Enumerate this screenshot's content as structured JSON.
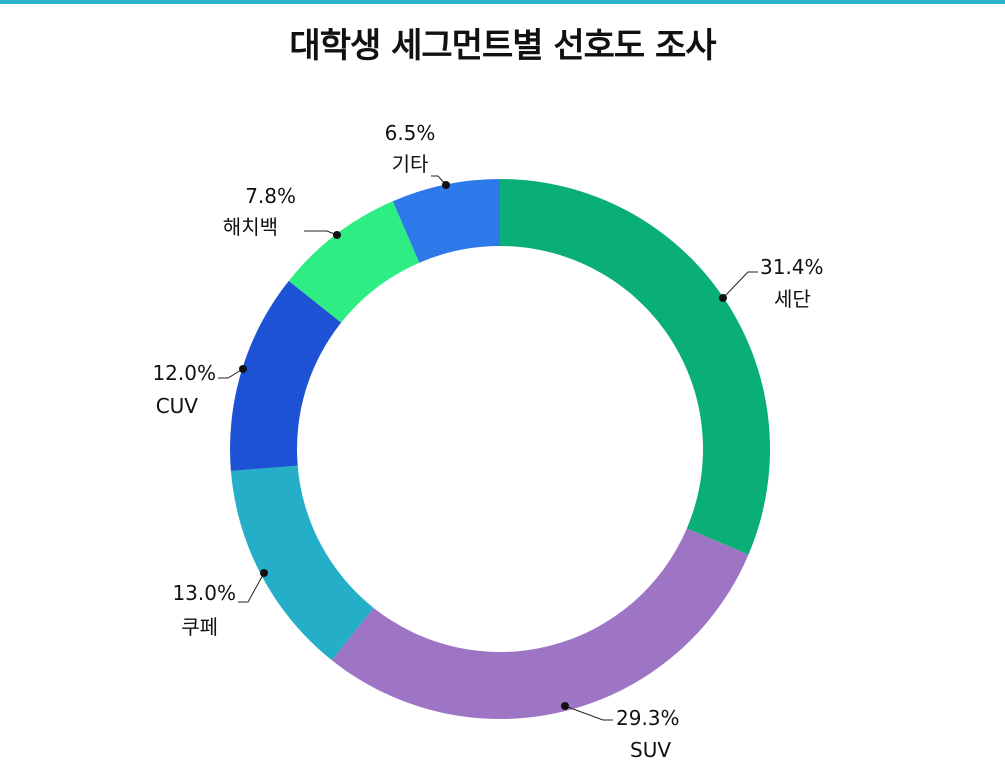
{
  "header": {
    "accent_color": "#2bb3c7"
  },
  "chart_data": {
    "type": "pie",
    "style": "donut",
    "title": "대학생 세그먼트별 선호도 조사",
    "slices": [
      {
        "label": "세단",
        "value": 31.4,
        "value_label": "31.4%",
        "color": "#0aae77"
      },
      {
        "label": "SUV",
        "value": 29.3,
        "value_label": "29.3%",
        "color": "#9e74c4"
      },
      {
        "label": "쿠페",
        "value": 13.0,
        "value_label": "13.0%",
        "color": "#25aec8"
      },
      {
        "label": "CUV",
        "value": 12.0,
        "value_label": "12.0%",
        "color": "#1c52d3"
      },
      {
        "label": "해치백",
        "value": 7.8,
        "value_label": "7.8%",
        "color": "#2ded83"
      },
      {
        "label": "기타",
        "value": 6.5,
        "value_label": "6.5%",
        "color": "#2d79ea"
      }
    ],
    "legend": "none"
  }
}
